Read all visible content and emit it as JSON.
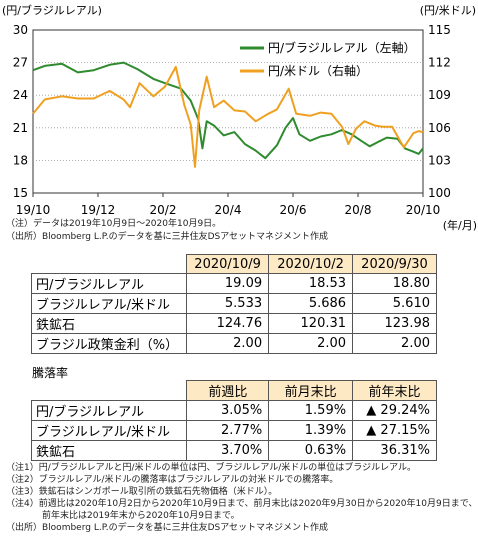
{
  "chart_data": {
    "type": "line",
    "left_axis_label": "(円/ブラジルレアル)",
    "right_axis_label": "(円/米ドル)",
    "x_unit_label": "(年/月)",
    "x_tick_labels": [
      "19/10",
      "19/12",
      "20/2",
      "20/4",
      "20/6",
      "20/8",
      "20/10"
    ],
    "x_range": [
      "2019-10-09",
      "2020-10-09"
    ],
    "y_left_ticks": [
      15,
      18,
      21,
      24,
      27,
      30
    ],
    "y_left_range": [
      15,
      30
    ],
    "y_right_ticks": [
      100,
      103,
      106,
      109,
      112,
      115
    ],
    "y_right_range": [
      100,
      115
    ],
    "grid": "horizontal-dotted",
    "legend_position": "top-right",
    "series": [
      {
        "name": "円/ブラジルレアル（左軸）",
        "axis": "left",
        "color": "#2e8b2e",
        "points": [
          [
            "2019-10-09",
            26.3
          ],
          [
            "2019-10-20",
            26.7
          ],
          [
            "2019-11-05",
            26.9
          ],
          [
            "2019-11-20",
            26.1
          ],
          [
            "2019-12-05",
            26.3
          ],
          [
            "2019-12-20",
            26.8
          ],
          [
            "2020-01-02",
            27.0
          ],
          [
            "2020-01-15",
            26.4
          ],
          [
            "2020-01-30",
            25.5
          ],
          [
            "2020-02-10",
            25.1
          ],
          [
            "2020-02-25",
            24.6
          ],
          [
            "2020-03-05",
            23.5
          ],
          [
            "2020-03-12",
            21.8
          ],
          [
            "2020-03-16",
            19.1
          ],
          [
            "2020-03-20",
            21.6
          ],
          [
            "2020-03-27",
            21.2
          ],
          [
            "2020-04-05",
            20.3
          ],
          [
            "2020-04-15",
            20.6
          ],
          [
            "2020-04-25",
            19.5
          ],
          [
            "2020-05-05",
            18.9
          ],
          [
            "2020-05-14",
            18.2
          ],
          [
            "2020-05-25",
            19.4
          ],
          [
            "2020-06-02",
            21.0
          ],
          [
            "2020-06-09",
            21.9
          ],
          [
            "2020-06-15",
            20.4
          ],
          [
            "2020-06-25",
            19.8
          ],
          [
            "2020-07-05",
            20.2
          ],
          [
            "2020-07-15",
            20.4
          ],
          [
            "2020-07-25",
            20.8
          ],
          [
            "2020-08-03",
            20.4
          ],
          [
            "2020-08-12",
            19.8
          ],
          [
            "2020-08-20",
            19.3
          ],
          [
            "2020-08-28",
            19.7
          ],
          [
            "2020-09-05",
            20.1
          ],
          [
            "2020-09-15",
            20.0
          ],
          [
            "2020-09-22",
            19.1
          ],
          [
            "2020-09-30",
            18.8
          ],
          [
            "2020-10-05",
            18.6
          ],
          [
            "2020-10-09",
            19.1
          ]
        ]
      },
      {
        "name": "円/米ドル（右軸）",
        "axis": "right",
        "color": "#f0a020",
        "points": [
          [
            "2019-10-09",
            107.3
          ],
          [
            "2019-10-20",
            108.6
          ],
          [
            "2019-11-05",
            108.9
          ],
          [
            "2019-11-20",
            108.7
          ],
          [
            "2019-12-05",
            108.7
          ],
          [
            "2019-12-20",
            109.4
          ],
          [
            "2020-01-02",
            108.6
          ],
          [
            "2020-01-08",
            107.9
          ],
          [
            "2020-01-17",
            110.1
          ],
          [
            "2020-01-30",
            108.9
          ],
          [
            "2020-02-10",
            109.8
          ],
          [
            "2020-02-20",
            111.6
          ],
          [
            "2020-02-28",
            108.1
          ],
          [
            "2020-03-05",
            106.3
          ],
          [
            "2020-03-09",
            102.4
          ],
          [
            "2020-03-13",
            107.6
          ],
          [
            "2020-03-20",
            110.7
          ],
          [
            "2020-03-27",
            107.9
          ],
          [
            "2020-04-05",
            108.5
          ],
          [
            "2020-04-15",
            107.6
          ],
          [
            "2020-04-25",
            107.5
          ],
          [
            "2020-05-05",
            106.6
          ],
          [
            "2020-05-15",
            107.2
          ],
          [
            "2020-05-25",
            107.7
          ],
          [
            "2020-06-05",
            109.6
          ],
          [
            "2020-06-12",
            107.3
          ],
          [
            "2020-06-25",
            107.1
          ],
          [
            "2020-07-05",
            107.4
          ],
          [
            "2020-07-15",
            107.3
          ],
          [
            "2020-07-25",
            106.1
          ],
          [
            "2020-07-31",
            104.5
          ],
          [
            "2020-08-07",
            105.9
          ],
          [
            "2020-08-15",
            106.6
          ],
          [
            "2020-08-25",
            106.2
          ],
          [
            "2020-09-01",
            106.1
          ],
          [
            "2020-09-10",
            106.1
          ],
          [
            "2020-09-21",
            104.2
          ],
          [
            "2020-09-30",
            105.5
          ],
          [
            "2020-10-05",
            105.7
          ],
          [
            "2020-10-09",
            105.6
          ]
        ]
      }
    ]
  },
  "chart_notes": [
    "（注）データは2019年10月9日～2020年10月9日。",
    "（出所）Bloomberg L.P.のデータを基に三井住友DSアセットマネジメント作成"
  ],
  "price_table": {
    "headers": [
      "2020/10/9",
      "2020/10/2",
      "2020/9/30"
    ],
    "rows": [
      {
        "label": "円/ブラジルレアル",
        "values": [
          "19.09",
          "18.53",
          "18.80"
        ]
      },
      {
        "label": "ブラジルレアル/米ドル",
        "values": [
          "5.533",
          "5.686",
          "5.610"
        ]
      },
      {
        "label": "鉄鉱石",
        "values": [
          "124.76",
          "120.31",
          "123.98"
        ]
      },
      {
        "label": "ブラジル政策金利（%）",
        "values": [
          "2.00",
          "2.00",
          "2.00"
        ]
      }
    ]
  },
  "change_section_title": "騰落率",
  "change_table": {
    "headers": [
      "前週比",
      "前月末比",
      "前年末比"
    ],
    "rows": [
      {
        "label": "円/ブラジルレアル",
        "values": [
          "3.05%",
          "1.59%",
          "▲ 29.24%"
        ]
      },
      {
        "label": "ブラジルレアル/米ドル",
        "values": [
          "2.77%",
          "1.39%",
          "▲ 27.15%"
        ]
      },
      {
        "label": "鉄鉱石",
        "values": [
          "3.70%",
          "0.63%",
          "36.31%"
        ]
      }
    ]
  },
  "footnotes": [
    "（注1）円/ブラジルレアルと円/米ドルの単位は円、ブラジルレアル/米ドルの単位はブラジルレアル。",
    "（注2）ブラジルレアル/米ドルの騰落率はブラジルレアルの対米ドルでの騰落率。",
    "（注3）鉄鉱石はシンガポール取引所の鉄鉱石先物価格（米ドル）。",
    "（注4）前週比は2020年10月2日から2020年10月9日まで、前月末比は2020年9月30日から2020年10月9日まで、",
    "　　　　前年末比は2019年末から2020年10月9日まで。",
    "（出所）Bloomberg L.P.のデータを基に三井住友DSアセットマネジメント作成"
  ]
}
